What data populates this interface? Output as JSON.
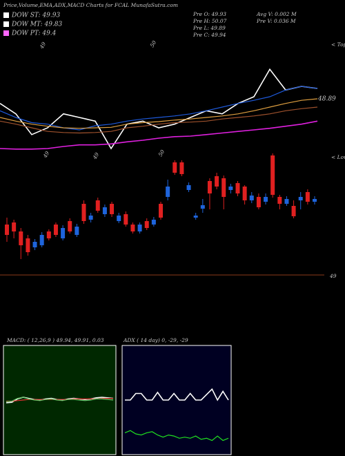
{
  "chart_data": [
    {
      "type": "line",
      "title": "Price,Volume,EMA,ADX,MACD Charts for FCAL MunafaSutra.com",
      "legend": [
        {
          "label": "DOW ST: 49.93",
          "color": "#ffffff"
        },
        {
          "label": "DOW MT: 49.83",
          "color": "#ffffff"
        },
        {
          "label": "DOW PT: 49.4",
          "color": "#ff66ff"
        }
      ],
      "info": [
        "Pre O: 49.93",
        "Pre H: 50.07",
        "Pre L: 49.89",
        "Pre C: 49.94",
        "Avg V: 0.002 M",
        "Pre V: 0.036 M"
      ],
      "annotations": [
        "< Tops",
        "< Lows",
        "48.89"
      ],
      "x_labels": [
        "49",
        "50",
        "49",
        "49",
        "50"
      ],
      "ylim": [
        48.5,
        50.5
      ],
      "series": [
        {
          "color": "#ffffff",
          "values": [
            49.57,
            49.37,
            48.97,
            49.1,
            49.37,
            49.3,
            49.23,
            48.7,
            49.17,
            49.23,
            49.1,
            49.17,
            49.3,
            49.43,
            49.37,
            49.57,
            49.7,
            50.23,
            49.83,
            49.9,
            49.86
          ]
        },
        {
          "color": "#1e5adc",
          "values": [
            49.43,
            49.3,
            49.2,
            49.17,
            49.1,
            49.06,
            49.14,
            49.17,
            49.23,
            49.27,
            49.3,
            49.33,
            49.37,
            49.43,
            49.5,
            49.57,
            49.63,
            49.7,
            49.83,
            49.9,
            49.86
          ]
        },
        {
          "color": "#e0a040",
          "values": [
            49.3,
            49.23,
            49.17,
            49.13,
            49.1,
            49.09,
            49.1,
            49.11,
            49.17,
            49.2,
            49.22,
            49.25,
            49.27,
            49.3,
            49.33,
            49.37,
            49.43,
            49.5,
            49.57,
            49.63,
            49.66
          ]
        },
        {
          "color": "#a0522d",
          "values": [
            49.23,
            49.17,
            49.1,
            49.03,
            49.01,
            49.0,
            49.01,
            49.03,
            49.1,
            49.13,
            49.17,
            49.2,
            49.21,
            49.23,
            49.27,
            49.3,
            49.33,
            49.37,
            49.43,
            49.47,
            49.5
          ]
        },
        {
          "color": "#e020e0",
          "values": [
            48.7,
            48.69,
            48.69,
            48.7,
            48.74,
            48.77,
            48.77,
            48.79,
            48.83,
            48.86,
            48.9,
            48.93,
            48.94,
            48.97,
            49.0,
            49.03,
            49.06,
            49.09,
            49.13,
            49.17,
            49.23
          ]
        }
      ]
    },
    {
      "type": "candlestick",
      "ylim": [
        49,
        50.98
      ],
      "yticks": [
        49
      ],
      "grid": true,
      "up_color": "#1e64dc",
      "down_color": "#e02020",
      "candles": [
        [
          49.73,
          49.83,
          49.48,
          49.58
        ],
        [
          49.76,
          49.8,
          49.53,
          49.63
        ],
        [
          49.63,
          49.68,
          49.23,
          49.43
        ],
        [
          49.53,
          49.58,
          49.28,
          49.33
        ],
        [
          49.4,
          49.52,
          49.36,
          49.48
        ],
        [
          49.43,
          49.62,
          49.4,
          49.58
        ],
        [
          49.63,
          49.66,
          49.5,
          49.53
        ],
        [
          49.73,
          49.76,
          49.55,
          49.58
        ],
        [
          49.53,
          49.72,
          49.5,
          49.68
        ],
        [
          49.78,
          49.82,
          49.6,
          49.63
        ],
        [
          49.58,
          49.74,
          49.55,
          49.7
        ],
        [
          50.03,
          50.08,
          49.74,
          49.78
        ],
        [
          49.8,
          49.9,
          49.76,
          49.86
        ],
        [
          50.08,
          50.12,
          49.9,
          49.93
        ],
        [
          49.88,
          50.02,
          49.84,
          49.98
        ],
        [
          50.03,
          50.06,
          49.84,
          49.88
        ],
        [
          49.78,
          49.9,
          49.75,
          49.86
        ],
        [
          49.88,
          49.92,
          49.7,
          49.73
        ],
        [
          49.73,
          49.76,
          49.6,
          49.63
        ],
        [
          49.63,
          49.76,
          49.6,
          49.73
        ],
        [
          49.78,
          49.82,
          49.65,
          49.68
        ],
        [
          49.73,
          49.84,
          49.7,
          49.8
        ],
        [
          50.03,
          50.06,
          49.8,
          49.83
        ],
        [
          50.13,
          50.38,
          50.08,
          50.28
        ],
        [
          50.63,
          50.66,
          50.45,
          50.48
        ],
        [
          50.63,
          50.66,
          50.43,
          50.46
        ],
        [
          50.23,
          50.34,
          50.2,
          50.3
        ],
        [
          49.83,
          49.9,
          49.8,
          49.86
        ],
        [
          49.96,
          50.1,
          49.9,
          50.01
        ],
        [
          50.36,
          50.4,
          49.95,
          50.18
        ],
        [
          50.43,
          50.48,
          50.24,
          50.28
        ],
        [
          50.4,
          50.44,
          49.95,
          50.13
        ],
        [
          50.23,
          50.32,
          50.18,
          50.28
        ],
        [
          50.33,
          50.36,
          50.14,
          50.18
        ],
        [
          50.28,
          50.3,
          50.02,
          50.08
        ],
        [
          50.08,
          50.2,
          50.04,
          50.15
        ],
        [
          50.13,
          50.18,
          49.95,
          49.98
        ],
        [
          50.06,
          50.18,
          50.02,
          50.13
        ],
        [
          50.73,
          50.76,
          50.12,
          50.16
        ],
        [
          50.13,
          50.16,
          49.95,
          50.03
        ],
        [
          50.03,
          50.14,
          50.0,
          50.1
        ],
        [
          50.0,
          50.08,
          49.82,
          49.85
        ],
        [
          50.08,
          50.2,
          49.95,
          50.13
        ],
        [
          50.2,
          50.24,
          50.02,
          50.06
        ],
        [
          50.06,
          50.14,
          50.02,
          50.1
        ]
      ]
    },
    {
      "type": "line",
      "title": "MACD: ( 12,26,9 ) 49.94, 49.91, 0.03",
      "ylim": [
        -1,
        1
      ],
      "background": "#002800",
      "series": [
        {
          "color": "#ffffff",
          "values": [
            -0.05,
            -0.04,
            0.02,
            0.05,
            0.03,
            0.01,
            0.0,
            0.02,
            0.03,
            0.01,
            0.0,
            0.02,
            0.03,
            0.02,
            0.01,
            0.02,
            0.04,
            0.05,
            0.04,
            0.03
          ]
        },
        {
          "color": "#e03030",
          "values": [
            -0.02,
            -0.02,
            -0.01,
            0.0,
            0.01,
            0.01,
            0.01,
            0.01,
            0.01,
            0.01,
            0.01,
            0.01,
            0.02,
            0.02,
            0.02,
            0.02,
            0.02,
            0.03,
            0.03,
            0.03
          ]
        },
        {
          "color": "#60c060",
          "values": [
            -0.03,
            -0.02,
            0.03,
            0.05,
            0.02,
            0.0,
            -0.01,
            0.01,
            0.02,
            0.0,
            -0.01,
            0.01,
            0.01,
            0.0,
            -0.01,
            0.0,
            0.02,
            0.02,
            0.01,
            0.0
          ]
        }
      ]
    },
    {
      "type": "line",
      "title": "ADX  ( 14 day) 0, -29, -29",
      "ylim": [
        0,
        100
      ],
      "background": "#000022",
      "series": [
        {
          "color": "#ffffff",
          "values": [
            50,
            50,
            56,
            56,
            50,
            50,
            57,
            50,
            50,
            56,
            50,
            50,
            56,
            50,
            50,
            55,
            60,
            50,
            58,
            50
          ]
        },
        {
          "color": "#20e020",
          "values": [
            20,
            22,
            19,
            18,
            20,
            21,
            18,
            16,
            18,
            17,
            15,
            16,
            15,
            17,
            14,
            15,
            13,
            17,
            13,
            15
          ]
        }
      ]
    }
  ]
}
